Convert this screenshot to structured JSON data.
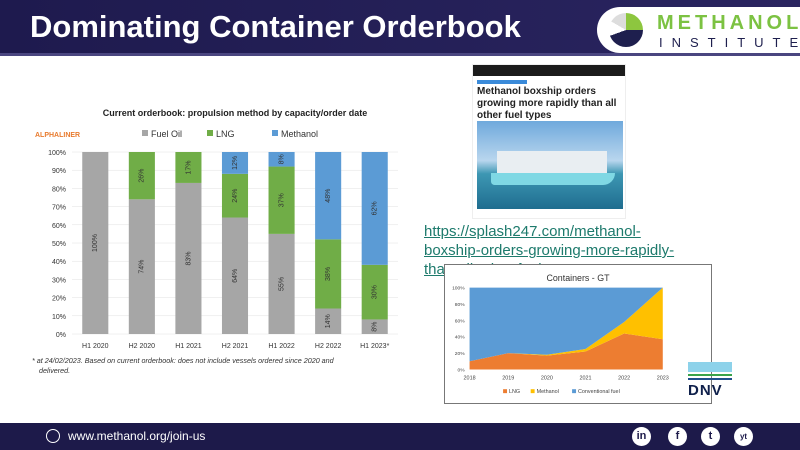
{
  "header": {
    "title": "Dominating Container Orderbook",
    "logo_line1": "METHANOL",
    "logo_line2": "INSTITUTE"
  },
  "article": {
    "headline": "Methanol boxship orders growing more rapidly than all other fuel types",
    "link": "https://splash247.com/methanol-boxship-orders-growing-more-rapidly-than-all-other-fuel"
  },
  "footer": {
    "url": "www.methanol.org/join-us",
    "social": [
      "in",
      "f",
      "t",
      "yt"
    ]
  },
  "dnv": {
    "label": "DNV"
  },
  "chart_data": [
    {
      "type": "bar",
      "stacked": true,
      "title": "Current orderbook: propulsion method by capacity/order date",
      "source": "ALPHALINER",
      "categories": [
        "H1 2020",
        "H2 2020",
        "H1 2021",
        "H2 2021",
        "H1 2022",
        "H2 2022",
        "H1 2023*"
      ],
      "series": [
        {
          "name": "Fuel Oil",
          "color": "#a6a6a6",
          "values": [
            100,
            74,
            83,
            64,
            55,
            14,
            8
          ]
        },
        {
          "name": "LNG",
          "color": "#70ad47",
          "values": [
            0,
            26,
            17,
            24,
            37,
            38,
            30
          ]
        },
        {
          "name": "Methanol",
          "color": "#5b9bd5",
          "values": [
            0,
            0,
            0,
            12,
            8,
            48,
            62
          ]
        }
      ],
      "yticks": [
        "0%",
        "10%",
        "20%",
        "30%",
        "40%",
        "50%",
        "60%",
        "70%",
        "80%",
        "90%",
        "100%"
      ],
      "ylim": [
        0,
        100
      ],
      "footnote": "* at 24/02/2023. Based on current orderbook: does not include vessels ordered since 2020 and delivered."
    },
    {
      "type": "area",
      "stacked": true,
      "title": "Containers - GT",
      "x": [
        "2018",
        "2019",
        "2020",
        "2021",
        "2022",
        "2023"
      ],
      "series": [
        {
          "name": "LNG",
          "color": "#ed7d31",
          "values": [
            10,
            20,
            17,
            22,
            44,
            37
          ]
        },
        {
          "name": "Methanol",
          "color": "#ffc000",
          "values": [
            0,
            0,
            1,
            3,
            14,
            63
          ]
        },
        {
          "name": "Conventional fuel",
          "color": "#5b9bd5",
          "values": [
            90,
            80,
            82,
            75,
            42,
            0
          ]
        }
      ],
      "yticks": [
        "0%",
        "20%",
        "40%",
        "60%",
        "80%",
        "100%"
      ],
      "ylim": [
        0,
        100
      ]
    }
  ]
}
